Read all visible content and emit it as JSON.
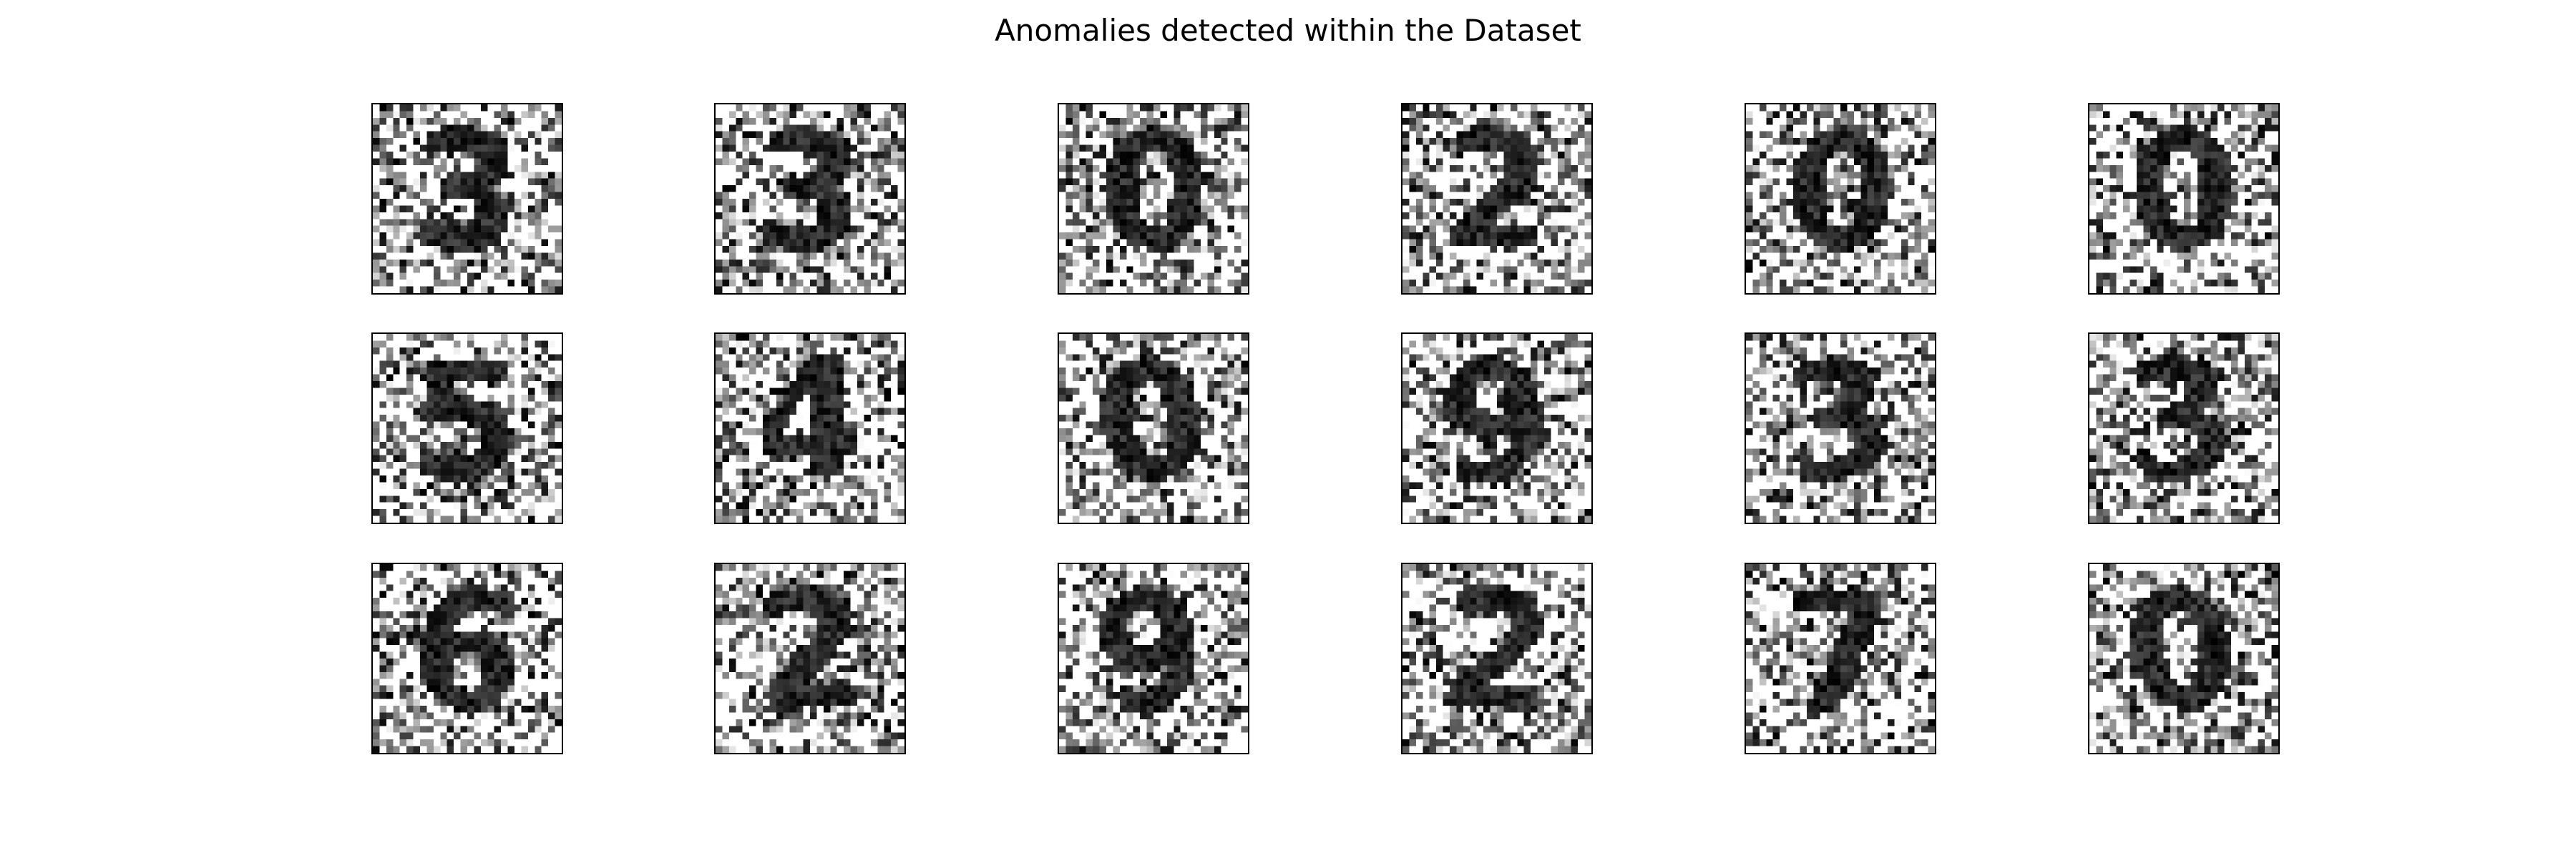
{
  "figure": {
    "title": "Anomalies detected within the Dataset",
    "grid": {
      "rows": 3,
      "cols": 6
    },
    "colormap": "gray_r",
    "panels": [
      {
        "row": 0,
        "col": 0,
        "digit": "3"
      },
      {
        "row": 0,
        "col": 1,
        "digit": "3"
      },
      {
        "row": 0,
        "col": 2,
        "digit": "0"
      },
      {
        "row": 0,
        "col": 3,
        "digit": "2"
      },
      {
        "row": 0,
        "col": 4,
        "digit": "0"
      },
      {
        "row": 0,
        "col": 5,
        "digit": "0"
      },
      {
        "row": 1,
        "col": 0,
        "digit": "5"
      },
      {
        "row": 1,
        "col": 1,
        "digit": "4"
      },
      {
        "row": 1,
        "col": 2,
        "digit": "0"
      },
      {
        "row": 1,
        "col": 3,
        "digit": "9"
      },
      {
        "row": 1,
        "col": 4,
        "digit": "3"
      },
      {
        "row": 1,
        "col": 5,
        "digit": "3"
      },
      {
        "row": 2,
        "col": 0,
        "digit": "6"
      },
      {
        "row": 2,
        "col": 1,
        "digit": "2"
      },
      {
        "row": 2,
        "col": 2,
        "digit": "9"
      },
      {
        "row": 2,
        "col": 3,
        "digit": "2"
      },
      {
        "row": 2,
        "col": 4,
        "digit": "7"
      },
      {
        "row": 2,
        "col": 5,
        "digit": "0"
      }
    ]
  }
}
